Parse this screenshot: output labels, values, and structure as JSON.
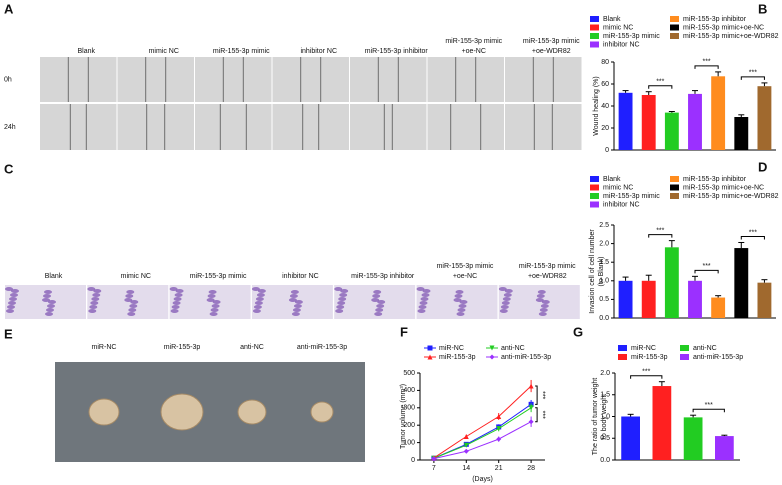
{
  "image_panels": [
    {
      "panel": "A",
      "columns": [
        [
          "Blank"
        ],
        [
          "mimic NC"
        ],
        [
          "miR-155-3p mimic"
        ],
        [
          "inhibitor NC"
        ],
        [
          "miR-155-3p inhibitor"
        ],
        [
          "miR-155-3p mimic",
          "+oe-NC"
        ],
        [
          "miR-155-3p mimic",
          "+oe-WDR82"
        ]
      ],
      "rows": [
        "0h",
        "24h"
      ]
    },
    {
      "panel": "C",
      "columns": [
        [
          "Blank"
        ],
        [
          "mimic NC"
        ],
        [
          "miR-155-3p mimic"
        ],
        [
          "inhibitor NC"
        ],
        [
          "miR-155-3p inhibitor"
        ],
        [
          "miR-155-3p mimic",
          "+oe-NC"
        ],
        [
          "miR-155-3p mimic",
          "+oe-WDR82"
        ]
      ]
    },
    {
      "panel": "E",
      "columns": [
        [
          "miR-NC"
        ],
        [
          "miR-155-3p"
        ],
        [
          "anti-NC"
        ],
        [
          "anti-miR-155-3p"
        ]
      ]
    }
  ],
  "chart_data": [
    {
      "panel": "B",
      "type": "bar",
      "ylabel": [
        "Wound healing (%)"
      ],
      "categories": [
        "Blank",
        "mimic NC",
        "miR-155-3p mimic",
        "inhibitor NC",
        "miR-155-3p inhibitor",
        "miR-155-3p mimic+oe-NC",
        "miR-155-3p mimic+oe-WDR82"
      ],
      "values": [
        52,
        50,
        34,
        51,
        67,
        30,
        58
      ],
      "errors": [
        2,
        3,
        1,
        3,
        4,
        2,
        3
      ],
      "colors": [
        "#1f1fff",
        "#ff2020",
        "#22cc22",
        "#9b30ff",
        "#ff8c1e",
        "#000000",
        "#a0692e"
      ],
      "ylim": [
        0,
        80
      ],
      "yticks": [
        0,
        20,
        40,
        60,
        80
      ],
      "annotations": [
        {
          "text": "***",
          "between": [
            "mimic NC",
            "miR-155-3p mimic"
          ]
        },
        {
          "text": "***",
          "between": [
            "inhibitor NC",
            "miR-155-3p inhibitor"
          ]
        },
        {
          "text": "***",
          "between": [
            "miR-155-3p mimic+oe-NC",
            "miR-155-3p mimic+oe-WDR82"
          ]
        }
      ]
    },
    {
      "panel": "D",
      "type": "bar",
      "ylabel": [
        "Invasion cell of cell number",
        "(to Blank)"
      ],
      "categories": [
        "Blank",
        "mimic NC",
        "miR-155-3p mimic",
        "inhibitor NC",
        "miR-155-3p inhibitor",
        "miR-155-3p mimic+oe-NC",
        "miR-155-3p mimic+oe-WDR82"
      ],
      "values": [
        1.0,
        1.0,
        1.9,
        1.0,
        0.55,
        1.88,
        0.95
      ],
      "errors": [
        0.1,
        0.15,
        0.18,
        0.12,
        0.05,
        0.15,
        0.08
      ],
      "colors": [
        "#1f1fff",
        "#ff2020",
        "#22cc22",
        "#9b30ff",
        "#ff8c1e",
        "#000000",
        "#a0692e"
      ],
      "ylim": [
        0,
        2.5
      ],
      "yticks": [
        {
          "value": 0,
          "label": "0.0"
        },
        0.5,
        {
          "value": 1,
          "label": "1.0"
        },
        1.5,
        {
          "value": 2,
          "label": "2.0"
        },
        2.5
      ],
      "annotations": [
        {
          "text": "***",
          "between": [
            "mimic NC",
            "miR-155-3p mimic"
          ]
        },
        {
          "text": "***",
          "between": [
            "inhibitor NC",
            "miR-155-3p inhibitor"
          ]
        },
        {
          "text": "***",
          "between": [
            "miR-155-3p mimic+oe-NC",
            "miR-155-3p mimic+oe-WDR82"
          ]
        }
      ]
    },
    {
      "panel": "F",
      "type": "line",
      "ylabel": [
        "Tumor volume (mm³)"
      ],
      "xlabel": "(Days)",
      "x": [
        7,
        14,
        21,
        28
      ],
      "xlim": [
        4,
        31
      ],
      "xticks": [
        7,
        14,
        21,
        28
      ],
      "ylim": [
        0,
        500
      ],
      "yticks": [
        0,
        100,
        200,
        300,
        400,
        500
      ],
      "series": [
        {
          "name": "miR-NC",
          "color": "#1f1fff",
          "marker": "square",
          "values": [
            10,
            90,
            190,
            320
          ],
          "errors": [
            3,
            8,
            15,
            25
          ]
        },
        {
          "name": "anti-NC",
          "color": "#22cc22",
          "marker": "triangle-down",
          "values": [
            10,
            85,
            180,
            300
          ],
          "errors": [
            3,
            8,
            15,
            25
          ]
        },
        {
          "name": "miR-155-3p",
          "color": "#ff2020",
          "marker": "triangle",
          "values": [
            12,
            135,
            250,
            425
          ],
          "errors": [
            3,
            10,
            20,
            35
          ]
        },
        {
          "name": "anti-miR-155-3p",
          "color": "#9b30ff",
          "marker": "diamond",
          "values": [
            8,
            50,
            120,
            220
          ],
          "errors": [
            2,
            6,
            15,
            30
          ]
        }
      ],
      "annotations": [
        {
          "text": "***",
          "between": [
            "miR-155-3p",
            "miR-NC"
          ]
        },
        {
          "text": "***",
          "between": [
            "anti-NC",
            "anti-miR-155-3p"
          ]
        }
      ]
    },
    {
      "panel": "G",
      "type": "bar",
      "ylabel": [
        "The ratio of tumor weight",
        "to body weight"
      ],
      "categories": [
        "miR-NC",
        "anti-NC",
        "miR-155-3p",
        "anti-miR-155-3p"
      ],
      "values": [
        1.0,
        0.98,
        1.7,
        0.55
      ],
      "errors": [
        0.05,
        0.05,
        0.1,
        0.02
      ],
      "colors": [
        "#1f1fff",
        "#22cc22",
        "#ff2020",
        "#9b30ff"
      ],
      "order": [
        0,
        2,
        1,
        3
      ],
      "ylim": [
        0,
        2
      ],
      "yticks": [
        {
          "value": 0,
          "label": "0.0"
        },
        0.5,
        {
          "value": 1,
          "label": "1.0"
        },
        1.5,
        {
          "value": 2,
          "label": "2.0"
        }
      ],
      "annotations": [
        {
          "text": "***",
          "between": [
            "miR-NC",
            "miR-155-3p"
          ]
        },
        {
          "text": "***",
          "between": [
            "anti-NC",
            "anti-miR-155-3p"
          ]
        }
      ]
    }
  ]
}
